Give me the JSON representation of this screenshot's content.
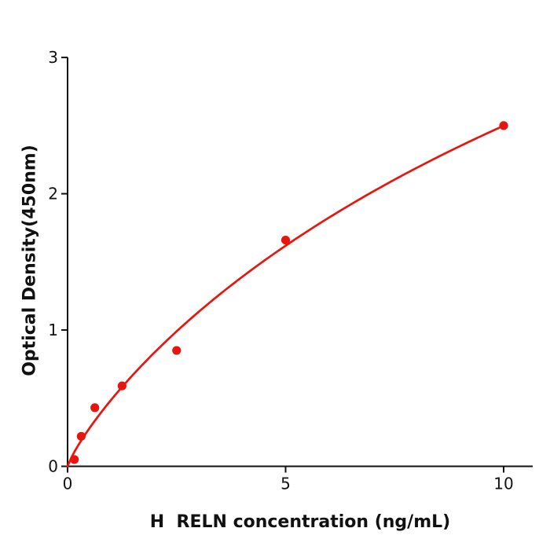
{
  "figure": {
    "background_color": "#ffffff",
    "description": "ELISA standard curve plot"
  },
  "chart_data": {
    "type": "scatter",
    "title": "",
    "xlabel": "H  RELN concentration (ng/mL)",
    "ylabel": "Optical Density(450nm)",
    "series": [
      {
        "name": "standard-points",
        "x": [
          0.156,
          0.313,
          0.625,
          1.25,
          2.5,
          5,
          10
        ],
        "y": [
          0.05,
          0.22,
          0.43,
          0.59,
          0.85,
          1.66,
          2.5
        ]
      }
    ],
    "fit_curve": {
      "type": "hill",
      "equation": "y = d*x^b / (c^b + x^b)",
      "d": 7.75,
      "c": 23.96,
      "b": 0.85,
      "x_range": [
        0,
        10
      ]
    },
    "x_ticks": [
      0,
      5,
      10
    ],
    "y_ticks": [
      0,
      1,
      2,
      3
    ],
    "xlim": [
      0,
      10.67
    ],
    "ylim": [
      0,
      3
    ],
    "grid": false,
    "legend_position": "none",
    "marker_color": "#e8150f",
    "line_color": "#e8150f",
    "axis_color": "#111111",
    "marker_radius": 5.6,
    "line_width": 2.7
  }
}
